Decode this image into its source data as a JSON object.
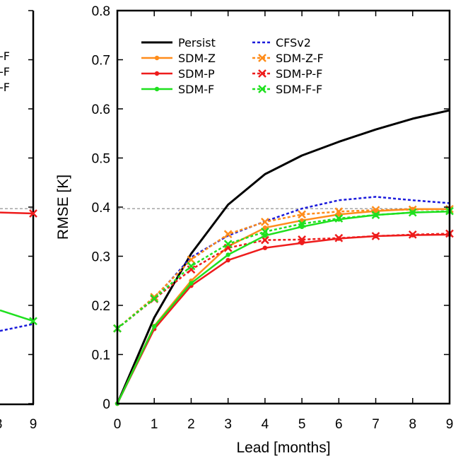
{
  "chart_data": [
    {
      "type": "line",
      "title": "",
      "xlabel": "Lead [months]",
      "ylabel": "RMSE [K]",
      "xlim": [
        0,
        9
      ],
      "ylim": [
        0,
        0.8
      ],
      "x_ticks": [
        "0",
        "1",
        "2",
        "3",
        "4",
        "5",
        "6",
        "7",
        "8",
        "9"
      ],
      "y_ticks": [
        "0",
        "0.1",
        "0.2",
        "0.3",
        "0.4",
        "0.5",
        "0.6",
        "0.7",
        "0.8"
      ],
      "reference_line": 0.397,
      "x": [
        0,
        1,
        2,
        3,
        4,
        5,
        6,
        7,
        8,
        9
      ],
      "series": [
        {
          "name": "Persist",
          "color": "#000000",
          "style": "solid",
          "marker": "none",
          "values": [
            0.0,
            0.175,
            0.305,
            0.405,
            0.467,
            0.505,
            0.533,
            0.558,
            0.58,
            0.597
          ]
        },
        {
          "name": "CFSv2",
          "color": "#1a1adb",
          "style": "dashed",
          "marker": "none",
          "values": [
            0.153,
            0.214,
            0.298,
            0.342,
            0.371,
            0.397,
            0.414,
            0.421,
            0.414,
            0.408
          ]
        },
        {
          "name": "SDM-Z",
          "color": "#ff8c1a",
          "style": "solid",
          "marker": "dot",
          "values": [
            0.0,
            0.158,
            0.25,
            0.32,
            0.358,
            0.373,
            0.385,
            0.392,
            0.396,
            0.396
          ]
        },
        {
          "name": "SDM-Z-F",
          "color": "#ff8c1a",
          "style": "dashed",
          "marker": "x",
          "values": [
            0.153,
            0.217,
            0.293,
            0.345,
            0.37,
            0.385,
            0.391,
            0.394,
            0.395,
            0.396
          ]
        },
        {
          "name": "SDM-P",
          "color": "#ee1c1c",
          "style": "solid",
          "marker": "dot",
          "values": [
            0.0,
            0.152,
            0.24,
            0.292,
            0.317,
            0.327,
            0.336,
            0.341,
            0.343,
            0.344
          ]
        },
        {
          "name": "SDM-P-F",
          "color": "#ee1c1c",
          "style": "dashed",
          "marker": "x",
          "values": [
            0.153,
            0.213,
            0.273,
            0.317,
            0.333,
            0.334,
            0.337,
            0.341,
            0.344,
            0.346
          ]
        },
        {
          "name": "SDM-F",
          "color": "#1fe01f",
          "style": "solid",
          "marker": "dot",
          "values": [
            0.0,
            0.157,
            0.245,
            0.303,
            0.342,
            0.36,
            0.375,
            0.384,
            0.389,
            0.391
          ]
        },
        {
          "name": "SDM-F-F",
          "color": "#1fe01f",
          "style": "dashed",
          "marker": "x",
          "values": [
            0.153,
            0.214,
            0.28,
            0.325,
            0.35,
            0.366,
            0.377,
            0.384,
            0.389,
            0.392
          ]
        }
      ],
      "legend": {
        "placement": "top-left",
        "columns": [
          [
            "Persist",
            "SDM-Z",
            "SDM-P",
            "SDM-F"
          ],
          [
            "CFSv2",
            "SDM-Z-F",
            "SDM-P-F",
            "SDM-F-F"
          ]
        ]
      }
    },
    {
      "type": "line",
      "partial": "cropped-left-panel",
      "x_ticks_visible": [
        "8",
        "9"
      ],
      "legend_fragments": [
        "-F",
        "-F",
        "-F"
      ],
      "series_end_values_at_9": [
        {
          "name": "SDM-P",
          "color": "#ee1c1c",
          "value": 0.387
        },
        {
          "name": "SDM-F",
          "color": "#1fe01f",
          "value": 0.168
        },
        {
          "name": "CFSv2",
          "color": "#1a1adb",
          "value": 0.162
        }
      ]
    }
  ]
}
